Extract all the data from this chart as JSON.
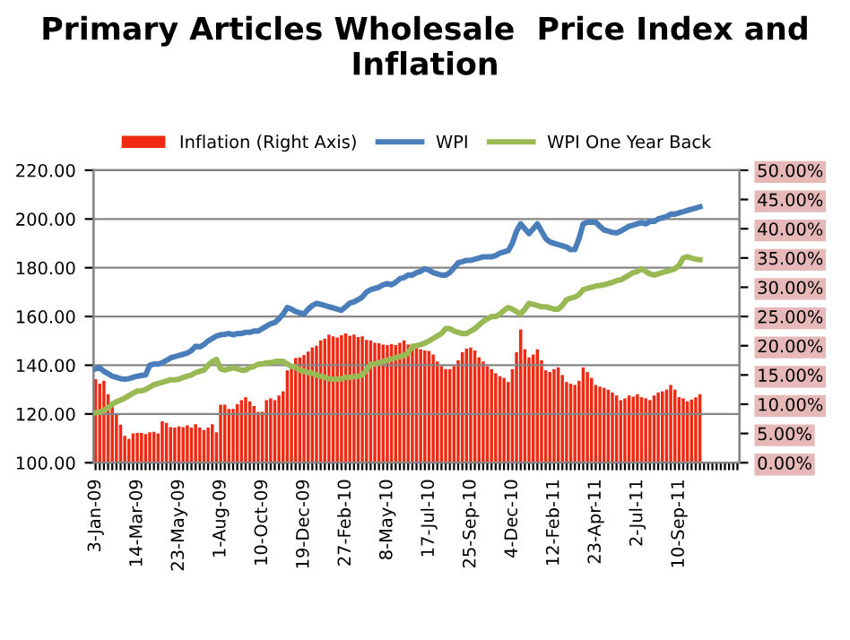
{
  "chart_data": {
    "type": "line",
    "title": "Primary Articles Wholesale  Price Index and Inflation",
    "categories": [
      "3-Jan-09",
      null,
      null,
      null,
      null,
      null,
      null,
      null,
      null,
      null,
      "14-Mar-09",
      null,
      null,
      null,
      null,
      null,
      null,
      null,
      null,
      null,
      "23-May-09",
      null,
      null,
      null,
      null,
      null,
      null,
      null,
      null,
      null,
      "1-Aug-09",
      null,
      null,
      null,
      null,
      null,
      null,
      null,
      null,
      null,
      "10-Oct-09",
      null,
      null,
      null,
      null,
      null,
      null,
      null,
      null,
      null,
      "19-Dec-09",
      null,
      null,
      null,
      null,
      null,
      null,
      null,
      null,
      null,
      "27-Feb-10",
      null,
      null,
      null,
      null,
      null,
      null,
      null,
      null,
      null,
      "8-May-10",
      null,
      null,
      null,
      null,
      null,
      null,
      null,
      null,
      null,
      "17-Jul-10",
      null,
      null,
      null,
      null,
      null,
      null,
      null,
      null,
      null,
      "25-Sep-10",
      null,
      null,
      null,
      null,
      null,
      null,
      null,
      null,
      null,
      "4-Dec-10",
      null,
      null,
      null,
      null,
      null,
      null,
      null,
      null,
      null,
      "12-Feb-11",
      null,
      null,
      null,
      null,
      null,
      null,
      null,
      null,
      null,
      "23-Apr-11",
      null,
      null,
      null,
      null,
      null,
      null,
      null,
      null,
      null,
      "2-Jul-11",
      null,
      null,
      null,
      null,
      null,
      null,
      null,
      null,
      null,
      "10-Sep-11",
      null,
      null,
      null,
      null,
      null,
      null,
      null,
      null,
      null,
      null,
      null,
      null,
      null,
      null
    ],
    "series": [
      {
        "name": "Inflation (Right Axis)",
        "type": "bar",
        "axis": "y2",
        "color": "#ee2a12",
        "values": [
          14.3,
          13.5,
          14,
          11.7,
          10,
          8.2,
          6.5,
          4.6,
          4.1,
          5,
          5.1,
          5.1,
          4.9,
          5.2,
          5.3,
          5,
          7.1,
          6.8,
          6.1,
          6,
          6.2,
          6.1,
          6.4,
          6,
          6.6,
          6,
          5.6,
          6,
          6.6,
          5.2,
          9.9,
          9.9,
          9.2,
          9.2,
          10,
          10.7,
          11.2,
          10.5,
          9.7,
          8.7,
          8.7,
          10.7,
          11,
          10.7,
          11.5,
          12.2,
          15.8,
          16.5,
          17.9,
          18,
          18.4,
          19,
          19.7,
          20,
          20.9,
          21.2,
          21.9,
          21.6,
          21.4,
          21.8,
          22.1,
          21.7,
          21.9,
          21.5,
          21.6,
          21,
          20.9,
          20.5,
          20.4,
          20.2,
          20.1,
          20.3,
          20.1,
          20.5,
          20.9,
          20.2,
          19.9,
          19.6,
          19.4,
          19.2,
          19.1,
          18.5,
          17.3,
          16.5,
          16,
          16,
          16.5,
          17.5,
          18.9,
          19.5,
          19.7,
          19.2,
          18,
          17.3,
          16.5,
          16,
          15.3,
          14.8,
          14.5,
          13.8,
          16,
          18.9,
          22.8,
          19.4,
          18,
          18.5,
          19.4,
          17.5,
          15.8,
          15.5,
          16,
          16.3,
          15,
          13.8,
          13.5,
          13.3,
          14,
          16.3,
          15.5,
          14.5,
          13.3,
          13,
          12.8,
          12.5,
          12,
          11.5,
          10.7,
          11,
          11.5,
          11.3,
          11.7,
          11.2,
          11,
          10.7,
          11.5,
          12,
          12.2,
          12.5,
          13.3,
          12.5,
          11.2,
          11,
          10.5,
          10.8,
          11.2,
          11.7,
          null,
          null,
          null,
          null,
          null,
          null,
          null,
          null,
          null
        ]
      },
      {
        "name": "WPI",
        "color": "#4a7ebb",
        "values": [
          138.5,
          139,
          137.5,
          136.5,
          135.5,
          135,
          134.5,
          134.3,
          134.5,
          135,
          135.5,
          135.8,
          136,
          140,
          140.5,
          140.5,
          141,
          142,
          143,
          143.5,
          144,
          144.5,
          145,
          146,
          147.8,
          147.5,
          148.5,
          150,
          151,
          152,
          152.5,
          152.7,
          153,
          152.5,
          153,
          153,
          153.5,
          153.5,
          154,
          154,
          155,
          156,
          157,
          157.5,
          159,
          161,
          163.7,
          163,
          162,
          161.5,
          161,
          163,
          164.5,
          165.4,
          165,
          164.5,
          164,
          163.5,
          163,
          162.5,
          164,
          165.5,
          166,
          166.9,
          168,
          170,
          171,
          171.5,
          172,
          173,
          173.5,
          173,
          174,
          175.5,
          176,
          177,
          177,
          178,
          178.5,
          179.6,
          179,
          178,
          177.5,
          177,
          177,
          178,
          180,
          182,
          182.5,
          183,
          183,
          183.5,
          184,
          184.5,
          184.5,
          184.5,
          185,
          186,
          186.5,
          187,
          190,
          195,
          198,
          196,
          194,
          196,
          198,
          195,
          192,
          190.6,
          190,
          189.5,
          189,
          188.5,
          187.4,
          187.5,
          192,
          198,
          198.7,
          198.7,
          198.7,
          197,
          195.5,
          195,
          194.5,
          194.3,
          195,
          196,
          197,
          197.5,
          198,
          198.5,
          198,
          199,
          199,
          200,
          200.5,
          201,
          202,
          202,
          202.5,
          203,
          203.5,
          204,
          204.5,
          205,
          null,
          null,
          null,
          null,
          null,
          null,
          null,
          null,
          null
        ]
      },
      {
        "name": "WPI One Year Back",
        "color": "#98b954",
        "values": [
          120.5,
          120.8,
          121.5,
          122.5,
          124,
          125,
          125.7,
          126.5,
          127.5,
          128.5,
          129.4,
          129.5,
          130,
          131,
          132,
          132.5,
          133,
          133.5,
          134,
          134,
          134.3,
          135,
          135.5,
          136,
          137,
          137.5,
          138,
          140,
          141.5,
          142.4,
          138.5,
          138,
          138.5,
          139,
          138.5,
          138,
          138,
          139,
          139.5,
          140.4,
          140.5,
          141,
          141,
          141.5,
          141.6,
          141.6,
          140.5,
          139.5,
          139.2,
          138,
          137.5,
          137,
          136.7,
          136,
          135.5,
          135,
          134.5,
          134.3,
          134.3,
          134.5,
          135,
          135,
          135.3,
          135.5,
          136,
          138,
          140.4,
          140.5,
          141,
          141.5,
          142,
          142.5,
          143,
          143.5,
          144,
          145,
          147.8,
          148,
          148.5,
          149,
          150,
          151,
          152,
          153,
          155,
          155,
          154,
          153.5,
          153,
          153,
          154,
          155,
          156.5,
          158,
          159,
          160,
          160,
          161,
          162.5,
          163.7,
          163,
          162,
          161,
          163,
          165.4,
          165,
          164.5,
          164,
          164,
          163.5,
          163,
          163,
          164.5,
          166.9,
          167.5,
          168,
          169,
          171,
          171.5,
          172,
          172.5,
          172.7,
          173,
          173.5,
          174,
          174.7,
          175,
          176,
          177,
          178,
          178.4,
          179.6,
          178.5,
          177.5,
          177,
          177.5,
          178,
          178.5,
          179,
          179.6,
          181,
          184,
          184.5,
          184,
          183.5,
          183.3,
          null,
          null,
          null,
          null,
          null,
          null,
          null,
          null,
          null
        ]
      }
    ],
    "ylim": [
      100,
      220
    ],
    "yticks": [
      {
        "value": 100,
        "label": "100.00"
      },
      {
        "value": 120,
        "label": "120.00"
      },
      {
        "value": 140,
        "label": "140.00"
      },
      {
        "value": 160,
        "label": "160.00"
      },
      {
        "value": 180,
        "label": "180.00"
      },
      {
        "value": 200,
        "label": "200.00"
      },
      {
        "value": 220,
        "label": "220.00"
      }
    ],
    "y2lim": [
      0,
      50
    ],
    "y2ticks": [
      {
        "value": 0,
        "label": "0.00%"
      },
      {
        "value": 5,
        "label": "5.00%"
      },
      {
        "value": 10,
        "label": "10.00%"
      },
      {
        "value": 15,
        "label": "15.00%"
      },
      {
        "value": 20,
        "label": "20.00%"
      },
      {
        "value": 25,
        "label": "25.00%"
      },
      {
        "value": 30,
        "label": "30.00%"
      },
      {
        "value": 35,
        "label": "35.00%"
      },
      {
        "value": 40,
        "label": "40.00%"
      },
      {
        "value": 45,
        "label": "45.00%"
      },
      {
        "value": 50,
        "label": "50.00%"
      }
    ],
    "grid": "y",
    "legend": "top",
    "marker": "none",
    "line_style": "solid"
  }
}
